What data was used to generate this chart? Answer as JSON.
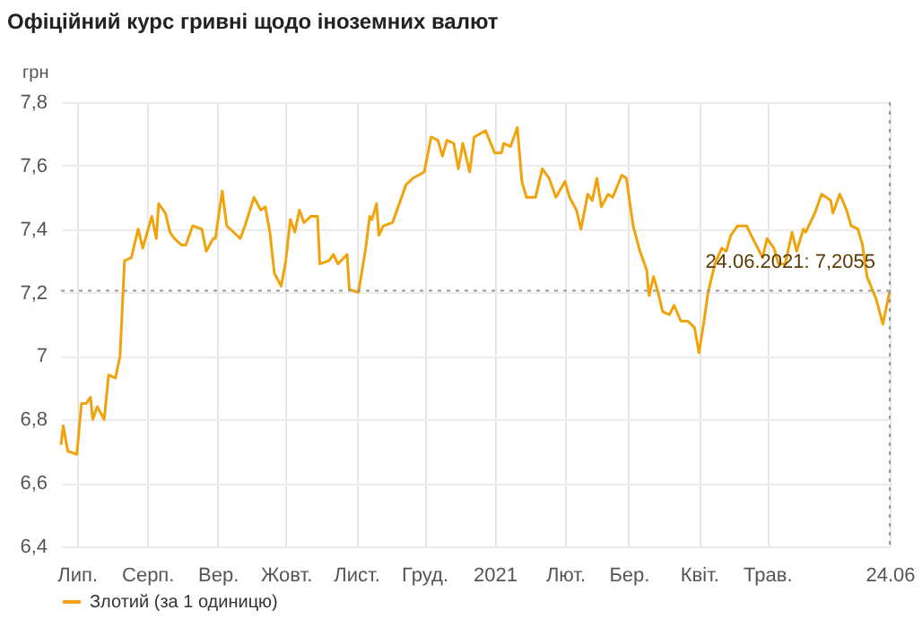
{
  "chart_data": {
    "type": "line",
    "title": "Офіційний курс гривні щодо іноземних валют",
    "ylabel": "грн",
    "x": [
      "2020-06-24",
      "2020-06-25",
      "2020-06-27",
      "2020-07-01",
      "2020-07-03",
      "2020-07-05",
      "2020-07-07",
      "2020-07-08",
      "2020-07-10",
      "2020-07-13",
      "2020-07-15",
      "2020-07-18",
      "2020-07-20",
      "2020-07-22",
      "2020-07-25",
      "2020-07-28",
      "2020-07-30",
      "2020-08-01",
      "2020-08-03",
      "2020-08-05",
      "2020-08-06",
      "2020-08-09",
      "2020-08-11",
      "2020-08-13",
      "2020-08-16",
      "2020-08-18",
      "2020-08-21",
      "2020-08-25",
      "2020-08-27",
      "2020-08-30",
      "2020-08-31",
      "2020-09-03",
      "2020-09-05",
      "2020-09-08",
      "2020-09-11",
      "2020-09-13",
      "2020-09-17",
      "2020-09-20",
      "2020-09-22",
      "2020-09-24",
      "2020-09-26",
      "2020-09-29",
      "2020-10-01",
      "2020-10-03",
      "2020-10-05",
      "2020-10-07",
      "2020-10-09",
      "2020-10-12",
      "2020-10-15",
      "2020-10-16",
      "2020-10-20",
      "2020-10-22",
      "2020-10-24",
      "2020-10-28",
      "2020-10-29",
      "2020-11-02",
      "2020-11-05",
      "2020-11-07",
      "2020-11-08",
      "2020-11-10",
      "2020-11-11",
      "2020-11-13",
      "2020-11-17",
      "2020-11-20",
      "2020-11-23",
      "2020-11-26",
      "2020-12-01",
      "2020-12-04",
      "2020-12-07",
      "2020-12-09",
      "2020-12-11",
      "2020-12-14",
      "2020-12-16",
      "2020-12-18",
      "2020-12-21",
      "2020-12-23",
      "2020-12-28",
      "2021-01-01",
      "2021-01-04",
      "2021-01-05",
      "2021-01-08",
      "2021-01-11",
      "2021-01-13",
      "2021-01-15",
      "2021-01-19",
      "2021-01-22",
      "2021-01-25",
      "2021-01-28",
      "2021-02-01",
      "2021-02-03",
      "2021-02-06",
      "2021-02-08",
      "2021-02-11",
      "2021-02-13",
      "2021-02-15",
      "2021-02-17",
      "2021-02-20",
      "2021-02-22",
      "2021-02-26",
      "2021-02-28",
      "2021-03-03",
      "2021-03-06",
      "2021-03-09",
      "2021-03-10",
      "2021-03-12",
      "2021-03-14",
      "2021-03-16",
      "2021-03-19",
      "2021-03-21",
      "2021-03-24",
      "2021-03-27",
      "2021-03-30",
      "2021-04-01",
      "2021-04-03",
      "2021-04-05",
      "2021-04-08",
      "2021-04-11",
      "2021-04-13",
      "2021-04-15",
      "2021-04-18",
      "2021-04-22",
      "2021-04-24",
      "2021-04-29",
      "2021-05-01",
      "2021-05-04",
      "2021-05-06",
      "2021-05-09",
      "2021-05-12",
      "2021-05-14",
      "2021-05-17",
      "2021-05-18",
      "2021-05-22",
      "2021-05-25",
      "2021-05-29",
      "2021-05-30",
      "2021-06-02",
      "2021-06-05",
      "2021-06-07",
      "2021-06-10",
      "2021-06-12",
      "2021-06-14",
      "2021-06-18",
      "2021-06-21",
      "2021-06-24"
    ],
    "series": [
      {
        "name": "Злотий (за 1 одиницю)",
        "color": "#f0a30a",
        "values": [
          6.72,
          6.78,
          6.7,
          6.69,
          6.85,
          6.85,
          6.87,
          6.8,
          6.84,
          6.8,
          6.94,
          6.93,
          7.0,
          7.3,
          7.31,
          7.4,
          7.34,
          7.39,
          7.44,
          7.37,
          7.48,
          7.45,
          7.39,
          7.37,
          7.35,
          7.35,
          7.41,
          7.4,
          7.33,
          7.37,
          7.37,
          7.52,
          7.41,
          7.39,
          7.37,
          7.41,
          7.5,
          7.46,
          7.47,
          7.39,
          7.26,
          7.22,
          7.3,
          7.43,
          7.39,
          7.46,
          7.42,
          7.44,
          7.44,
          7.29,
          7.3,
          7.32,
          7.29,
          7.32,
          7.21,
          7.2,
          7.33,
          7.44,
          7.43,
          7.48,
          7.38,
          7.41,
          7.42,
          7.48,
          7.54,
          7.56,
          7.58,
          7.69,
          7.68,
          7.63,
          7.68,
          7.67,
          7.59,
          7.67,
          7.58,
          7.69,
          7.71,
          7.64,
          7.64,
          7.67,
          7.66,
          7.72,
          7.55,
          7.5,
          7.5,
          7.59,
          7.56,
          7.5,
          7.55,
          7.5,
          7.46,
          7.4,
          7.51,
          7.49,
          7.56,
          7.47,
          7.51,
          7.5,
          7.57,
          7.56,
          7.41,
          7.33,
          7.27,
          7.19,
          7.25,
          7.2,
          7.14,
          7.13,
          7.16,
          7.11,
          7.11,
          7.09,
          7.01,
          7.1,
          7.2,
          7.29,
          7.34,
          7.33,
          7.38,
          7.41,
          7.41,
          7.38,
          7.31,
          7.37,
          7.34,
          7.29,
          7.29,
          7.39,
          7.33,
          7.4,
          7.39,
          7.45,
          7.51,
          7.49,
          7.45,
          7.51,
          7.46,
          7.41,
          7.4,
          7.35,
          7.25,
          7.18,
          7.1,
          7.2055
        ]
      }
    ],
    "xlim": [
      "2020-06-24",
      "2021-06-24"
    ],
    "xticks": [
      {
        "value": "2020-07-01",
        "label": "Лип."
      },
      {
        "value": "2020-08-01",
        "label": "Серп."
      },
      {
        "value": "2020-09-01",
        "label": "Вер."
      },
      {
        "value": "2020-10-01",
        "label": "Жовт."
      },
      {
        "value": "2020-11-01",
        "label": "Лист."
      },
      {
        "value": "2020-12-01",
        "label": "Груд."
      },
      {
        "value": "2021-01-01",
        "label": "2021"
      },
      {
        "value": "2021-02-01",
        "label": "Лют."
      },
      {
        "value": "2021-03-01",
        "label": "Бер."
      },
      {
        "value": "2021-04-01",
        "label": "Квіт."
      },
      {
        "value": "2021-05-01",
        "label": "Трав."
      },
      {
        "value": "2021-06-24",
        "label": "24.06"
      }
    ],
    "ylim": [
      6.4,
      7.8
    ],
    "yticks": [
      {
        "value": 6.4,
        "label": "6,4"
      },
      {
        "value": 6.6,
        "label": "6,6"
      },
      {
        "value": 6.8,
        "label": "6,8"
      },
      {
        "value": 7,
        "label": "7"
      },
      {
        "value": 7.2,
        "label": "7,2"
      },
      {
        "value": 7.4,
        "label": "7,4"
      },
      {
        "value": 7.6,
        "label": "7,6"
      },
      {
        "value": 7.8,
        "label": "7,8"
      }
    ],
    "grid": true,
    "legend": "bottom",
    "marker": "none",
    "line_style": "solid",
    "ref_lines": [
      {
        "axis": "y",
        "value": 7.2055,
        "line_style": "dotted",
        "color": "#999999"
      },
      {
        "axis": "x",
        "value": "2021-06-24",
        "line_style": "dotted",
        "color": "#999999"
      }
    ],
    "annotations": [
      {
        "text": "24.06.2021: 7,2055",
        "x": "2021-06-24",
        "y": 7.2055
      }
    ]
  }
}
